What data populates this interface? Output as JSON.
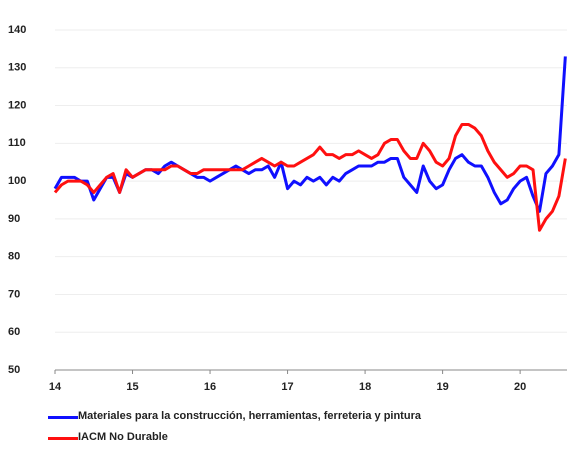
{
  "chart_data": {
    "type": "line",
    "categories": [
      "14",
      null,
      null,
      null,
      null,
      null,
      null,
      null,
      null,
      null,
      null,
      null,
      "15",
      null,
      null,
      null,
      null,
      null,
      null,
      null,
      null,
      null,
      null,
      null,
      "16",
      null,
      null,
      null,
      null,
      null,
      null,
      null,
      null,
      null,
      null,
      null,
      "17",
      null,
      null,
      null,
      null,
      null,
      null,
      null,
      null,
      null,
      null,
      null,
      "18",
      null,
      null,
      null,
      null,
      null,
      null,
      null,
      null,
      null,
      null,
      null,
      "19",
      null,
      null,
      null,
      null,
      null,
      null,
      null,
      null,
      null,
      null,
      null,
      "20",
      null,
      null,
      null,
      null,
      null,
      null,
      null
    ],
    "series": [
      {
        "name": "Materiales para la construcción, herramientas, ferreteria y pintura",
        "color": "#1010ff",
        "values": [
          98,
          101,
          101,
          101,
          100,
          100,
          95,
          98,
          101,
          101,
          97,
          102,
          101,
          102,
          103,
          103,
          102,
          104,
          105,
          104,
          103,
          102,
          101,
          101,
          100,
          101,
          102,
          103,
          104,
          103,
          102,
          103,
          103,
          104,
          101,
          105,
          98,
          100,
          99,
          101,
          100,
          101,
          99,
          101,
          100,
          102,
          103,
          104,
          104,
          104,
          105,
          105,
          106,
          106,
          101,
          99,
          97,
          104,
          100,
          98,
          99,
          103,
          106,
          107,
          105,
          104,
          104,
          101,
          97,
          94,
          95,
          98,
          100,
          101,
          96,
          92,
          102,
          104,
          107,
          133
        ]
      },
      {
        "name": "IACM No Durable",
        "color": "#ff1010",
        "values": [
          97,
          99,
          100,
          100,
          100,
          99,
          97,
          99,
          101,
          102,
          97,
          103,
          101,
          102,
          103,
          103,
          103,
          103,
          104,
          104,
          103,
          102,
          102,
          103,
          103,
          103,
          103,
          103,
          103,
          103,
          104,
          105,
          106,
          105,
          104,
          105,
          104,
          104,
          105,
          106,
          107,
          109,
          107,
          107,
          106,
          107,
          107,
          108,
          107,
          106,
          107,
          110,
          111,
          111,
          108,
          106,
          106,
          110,
          108,
          105,
          104,
          106,
          112,
          115,
          115,
          114,
          112,
          108,
          105,
          103,
          101,
          102,
          104,
          104,
          103,
          87,
          90,
          92,
          96,
          106
        ]
      }
    ],
    "ylim": [
      50,
      140
    ],
    "yticks": [
      50,
      60,
      70,
      80,
      90,
      100,
      110,
      120,
      130,
      140
    ],
    "grid": true,
    "legend": "bottom"
  }
}
